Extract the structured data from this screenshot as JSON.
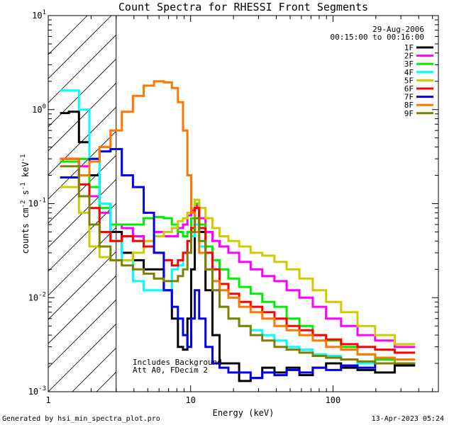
{
  "chart_data": {
    "type": "line",
    "title": "Count Spectra for RHESSI Front Segments",
    "xlabel": "Energy (keV)",
    "ylabel_main": "counts cm",
    "ylabel_sup1": "-2",
    "ylabel_mid": " s",
    "ylabel_sup2": "-1",
    "ylabel_tail": " keV",
    "ylabel_sup3": "-1",
    "xscale": "log",
    "yscale": "log",
    "xlim": [
      1,
      550
    ],
    "ylim": [
      0.001,
      10
    ],
    "xticks": [
      {
        "value": 1,
        "label": "1"
      },
      {
        "value": 10,
        "label": "10"
      },
      {
        "value": 100,
        "label": "100"
      }
    ],
    "yticks": [
      {
        "value": 10,
        "base": "10",
        "exp": "1"
      },
      {
        "value": 1,
        "base": "10",
        "exp": "0"
      },
      {
        "value": 0.1,
        "base": "10",
        "exp": "-1"
      },
      {
        "value": 0.01,
        "base": "10",
        "exp": "-2"
      },
      {
        "value": 0.001,
        "base": "10",
        "exp": "-3"
      }
    ],
    "date_label": "29-Aug-2006",
    "time_range_label": "00:15:00 to 00:16:00",
    "annotation_line1": "Includes Background",
    "annotation_line2": "Att A0, FDecim 2",
    "hatched_region_xmax": 3,
    "series": [
      {
        "name": "1F",
        "color": "#000000",
        "values": [
          0.92,
          0.95,
          0.45,
          0.2,
          0.1,
          0.05,
          0.03,
          0.025,
          0.02,
          0.02,
          0.012,
          0.006,
          0.003,
          0.0028,
          0.006,
          0.02,
          0.09,
          0.05,
          0.012,
          0.004,
          0.002,
          0.002,
          0.0013,
          0.0014,
          0.0018,
          0.0016,
          0.0018,
          0.0015,
          0.0018,
          0.002,
          0.0018,
          0.0017,
          0.0016,
          0.0019
        ]
      },
      {
        "name": "2F",
        "color": "#ff00ff",
        "values": [
          0.3,
          0.3,
          0.25,
          0.12,
          0.08,
          0.06,
          0.055,
          0.045,
          0.04,
          0.05,
          0.045,
          0.045,
          0.055,
          0.06,
          0.075,
          0.085,
          0.095,
          0.07,
          0.05,
          0.04,
          0.035,
          0.03,
          0.024,
          0.02,
          0.017,
          0.015,
          0.012,
          0.01,
          0.008,
          0.006,
          0.005,
          0.004,
          0.0035,
          0.003
        ]
      },
      {
        "name": "3F",
        "color": "#00ee00",
        "values": [
          0.28,
          0.28,
          0.3,
          0.15,
          0.09,
          0.06,
          0.06,
          0.06,
          0.07,
          0.072,
          0.07,
          0.06,
          0.05,
          0.045,
          0.05,
          0.07,
          0.1,
          0.06,
          0.035,
          0.025,
          0.02,
          0.016,
          0.013,
          0.011,
          0.009,
          0.008,
          0.006,
          0.005,
          0.004,
          0.0035,
          0.003,
          0.0025,
          0.0022,
          0.002
        ]
      },
      {
        "name": "4F",
        "color": "#00ffff",
        "values": [
          1.6,
          1.6,
          1.0,
          0.3,
          0.1,
          0.04,
          0.025,
          0.015,
          0.012,
          0.012,
          0.012,
          0.02,
          0.022,
          0.03,
          0.04,
          0.045,
          0.06,
          0.035,
          0.02,
          0.012,
          0.008,
          0.006,
          0.005,
          0.0045,
          0.004,
          0.0035,
          0.003,
          0.0028,
          0.0025,
          0.0024,
          0.0022,
          0.002,
          0.002,
          0.002
        ]
      },
      {
        "name": "5F",
        "color": "#cccc00",
        "values": [
          0.15,
          0.15,
          0.08,
          0.035,
          0.027,
          0.025,
          0.025,
          0.03,
          0.04,
          0.045,
          0.05,
          0.055,
          0.065,
          0.07,
          0.08,
          0.09,
          0.11,
          0.09,
          0.07,
          0.055,
          0.045,
          0.04,
          0.035,
          0.03,
          0.028,
          0.024,
          0.02,
          0.016,
          0.012,
          0.009,
          0.007,
          0.005,
          0.004,
          0.0032
        ]
      },
      {
        "name": "6F",
        "color": "#ff0000",
        "values": [
          0.3,
          0.3,
          0.16,
          0.09,
          0.05,
          0.04,
          0.045,
          0.04,
          0.035,
          0.03,
          0.025,
          0.022,
          0.025,
          0.03,
          0.04,
          0.055,
          0.09,
          0.055,
          0.03,
          0.02,
          0.014,
          0.011,
          0.009,
          0.008,
          0.007,
          0.006,
          0.005,
          0.0045,
          0.004,
          0.0036,
          0.0032,
          0.003,
          0.0028,
          0.0026
        ]
      },
      {
        "name": "7F",
        "color": "#0000ee",
        "values": [
          0.19,
          0.19,
          0.2,
          0.3,
          0.36,
          0.38,
          0.2,
          0.15,
          0.08,
          0.03,
          0.012,
          0.008,
          0.006,
          0.004,
          0.003,
          0.006,
          0.012,
          0.006,
          0.003,
          0.002,
          0.0018,
          0.0016,
          0.0016,
          0.0014,
          0.0016,
          0.0015,
          0.0017,
          0.0016,
          0.0018,
          0.0017,
          0.0019,
          0.0018,
          0.002,
          0.002
        ]
      },
      {
        "name": "8F",
        "color": "#ff7700",
        "values": [
          0.3,
          0.3,
          0.2,
          0.28,
          0.4,
          0.6,
          0.95,
          1.4,
          1.8,
          2.0,
          1.95,
          1.7,
          1.2,
          0.6,
          0.2,
          0.08,
          0.05,
          0.03,
          0.02,
          0.015,
          0.012,
          0.01,
          0.008,
          0.007,
          0.006,
          0.005,
          0.0045,
          0.004,
          0.0035,
          0.003,
          0.0028,
          0.0025,
          0.0023,
          0.0022
        ]
      },
      {
        "name": "9F",
        "color": "#808000",
        "values": [
          0.25,
          0.25,
          0.12,
          0.06,
          0.035,
          0.025,
          0.022,
          0.02,
          0.018,
          0.016,
          0.015,
          0.015,
          0.017,
          0.02,
          0.03,
          0.05,
          0.07,
          0.04,
          0.02,
          0.012,
          0.008,
          0.006,
          0.005,
          0.004,
          0.0035,
          0.003,
          0.0028,
          0.0026,
          0.0024,
          0.0023,
          0.0022,
          0.0021,
          0.002,
          0.002
        ]
      }
    ],
    "energy_bins": [
      1.3,
      1.5,
      1.8,
      2.1,
      2.5,
      3.0,
      3.6,
      4.3,
      5.1,
      6.0,
      7.0,
      7.8,
      8.5,
      9.2,
      9.8,
      10.4,
      11.0,
      12.0,
      13.5,
      15.0,
      17.0,
      20.0,
      24.0,
      29.0,
      35.0,
      43.0,
      52.0,
      65.0,
      80.0,
      100.0,
      130.0,
      170.0,
      230.0,
      320.0
    ]
  },
  "footer": {
    "generated_by": "Generated by hsi_min_spectra_plot.pro",
    "timestamp": "13-Apr-2023 05:24"
  }
}
